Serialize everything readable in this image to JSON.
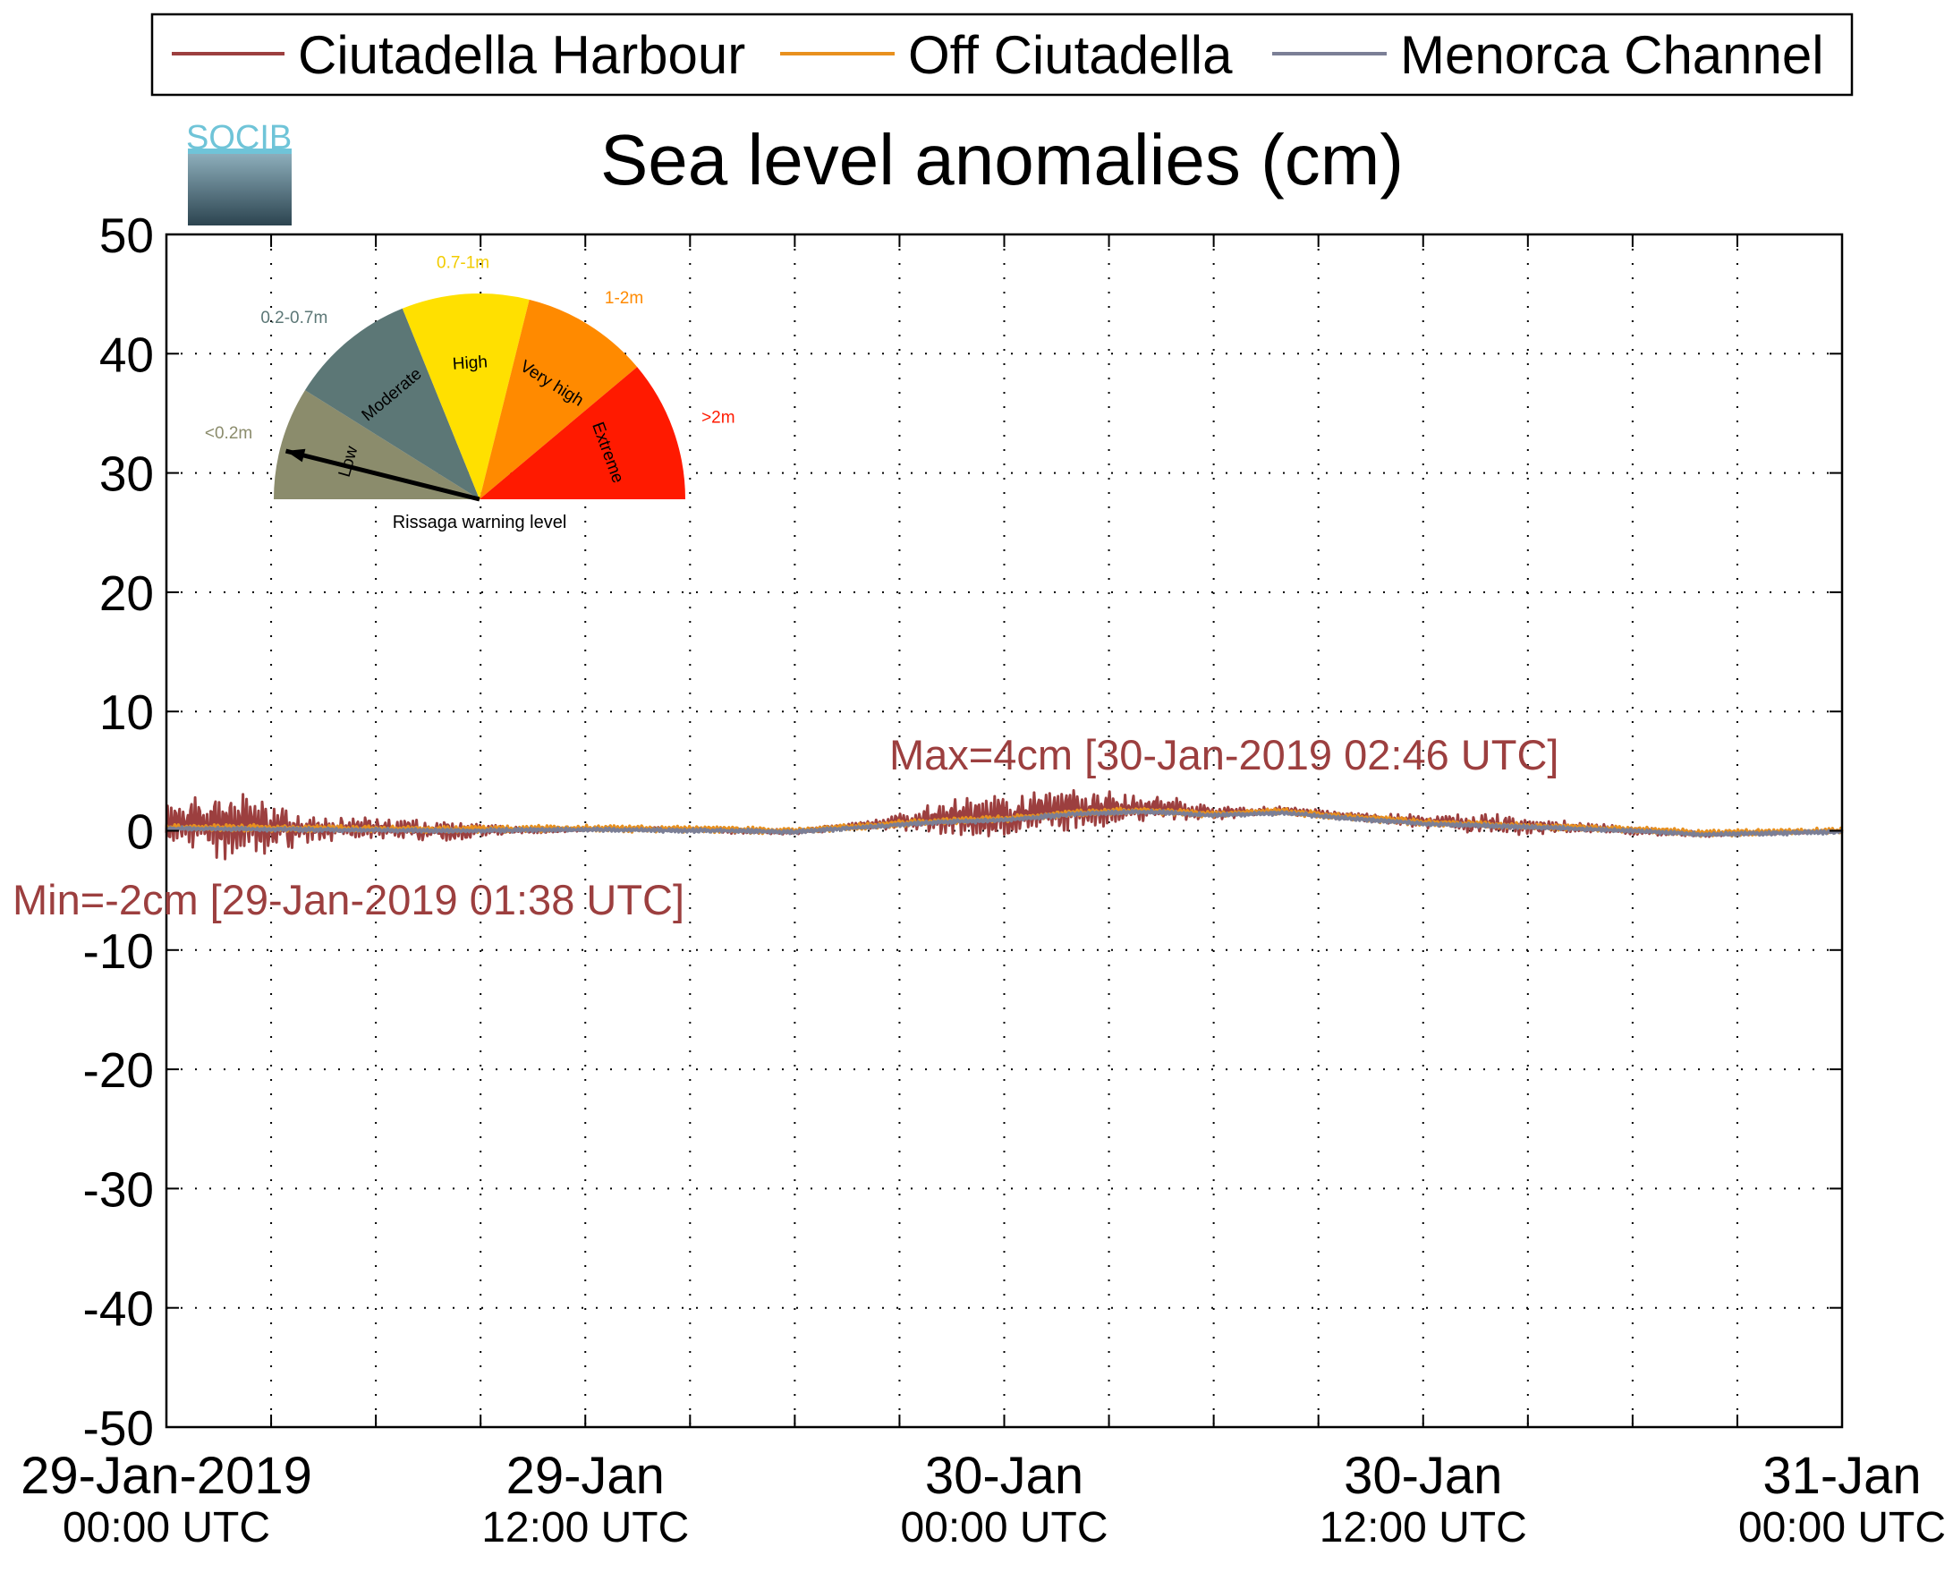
{
  "chart_data": {
    "type": "line",
    "title": "Sea level anomalies (cm)",
    "xlabel": "",
    "ylabel": "",
    "ylim": [
      -50,
      50
    ],
    "yticks": [
      50,
      40,
      30,
      20,
      10,
      0,
      -10,
      -20,
      -30,
      -40,
      -50
    ],
    "xlim": [
      "29-Jan-2019 00:00 UTC",
      "31-Jan-2019 00:00 UTC"
    ],
    "xtick_hours": [
      0,
      12,
      24,
      36,
      48
    ],
    "xtick_labels": [
      {
        "date": "29-Jan-2019",
        "time": "00:00 UTC"
      },
      {
        "date": "29-Jan",
        "time": "12:00 UTC"
      },
      {
        "date": "30-Jan",
        "time": "00:00 UTC"
      },
      {
        "date": "30-Jan",
        "time": "12:00 UTC"
      },
      {
        "date": "31-Jan",
        "time": "00:00 UTC"
      }
    ],
    "grid": true,
    "legend": "top",
    "series": [
      {
        "name": "Ciutadella Harbour",
        "color": "#9c3f3f",
        "trend_hours": [
          0,
          2,
          3,
          4,
          6,
          8,
          10,
          12,
          14,
          16,
          18,
          20,
          22,
          24,
          26,
          28,
          30,
          32,
          34,
          36,
          38,
          40,
          42,
          44,
          46,
          48
        ],
        "trend_values": [
          0.5,
          0.5,
          0.3,
          0.1,
          0.2,
          0.0,
          0.0,
          0.1,
          0.2,
          0.0,
          -0.1,
          0.5,
          1.0,
          1.2,
          1.8,
          2.0,
          1.5,
          1.7,
          1.2,
          0.8,
          0.5,
          0.3,
          0.0,
          -0.3,
          -0.2,
          0.0
        ],
        "amp_hours": [
          0,
          2,
          4,
          6,
          8,
          10,
          12,
          14,
          16,
          18,
          20,
          21,
          22,
          24,
          26,
          28,
          30,
          32,
          34,
          36,
          38,
          40,
          42,
          44,
          46,
          48
        ],
        "amp_values": [
          1.5,
          3.0,
          1.0,
          0.8,
          0.8,
          0.3,
          0.1,
          0.1,
          0.2,
          0.2,
          0.3,
          0.8,
          1.2,
          1.8,
          1.5,
          1.2,
          0.5,
          0.3,
          0.3,
          0.5,
          0.8,
          0.5,
          0.3,
          0.2,
          0.1,
          0.1
        ]
      },
      {
        "name": "Off Ciutadella",
        "color": "#e8901e",
        "trend_hours": [
          0,
          4,
          8,
          12,
          16,
          18,
          20,
          22,
          24,
          26,
          28,
          30,
          32,
          34,
          36,
          38,
          40,
          42,
          44,
          46,
          48
        ],
        "trend_values": [
          0.3,
          0.2,
          0.1,
          0.2,
          0.1,
          0.0,
          0.4,
          0.8,
          1.0,
          1.5,
          1.7,
          1.4,
          1.6,
          1.1,
          0.7,
          0.5,
          0.3,
          0.1,
          -0.2,
          -0.1,
          0.0
        ],
        "amp": 0.25
      },
      {
        "name": "Menorca Channel",
        "color": "#7b7f96",
        "trend_hours": [
          0,
          4,
          8,
          12,
          16,
          18,
          20,
          22,
          24,
          26,
          28,
          30,
          32,
          34,
          36,
          38,
          40,
          42,
          44,
          46,
          48
        ],
        "trend_values": [
          0.2,
          0.1,
          0.0,
          0.1,
          0.0,
          -0.1,
          0.3,
          0.7,
          0.9,
          1.4,
          1.6,
          1.3,
          1.5,
          1.0,
          0.6,
          0.4,
          0.2,
          0.0,
          -0.3,
          -0.2,
          -0.1
        ],
        "amp": 0.15
      }
    ],
    "annotations": {
      "max": {
        "text": "Max=4cm [30-Jan-2019 02:46 UTC]",
        "color": "#9c3f3f",
        "value": 4,
        "time": "30-Jan-2019 02:46 UTC"
      },
      "min": {
        "text": "Min=-2cm [29-Jan-2019 01:38 UTC]",
        "color": "#9c3f3f",
        "value": -2,
        "time": "29-Jan-2019 01:38 UTC"
      }
    }
  },
  "logo": {
    "text": "SOCIB"
  },
  "gauge": {
    "caption": "Rissaga warning level",
    "needle_level": "Low",
    "segments": [
      {
        "label": "Low",
        "range": "<0.2m",
        "color": "#8b8c6c",
        "range_color": "#8b8c6c"
      },
      {
        "label": "Moderate",
        "range": "0.2-0.7m",
        "color": "#5c7776",
        "range_color": "#5c7776"
      },
      {
        "label": "High",
        "range": "0.7-1m",
        "color": "#ffe000",
        "range_color": "#f2cc00"
      },
      {
        "label": "Very high",
        "range": "1-2m",
        "color": "#ff8a00",
        "range_color": "#ff8a00"
      },
      {
        "label": "Extreme",
        "range": ">2m",
        "color": "#ff1a00",
        "range_color": "#ff1a00"
      }
    ]
  }
}
